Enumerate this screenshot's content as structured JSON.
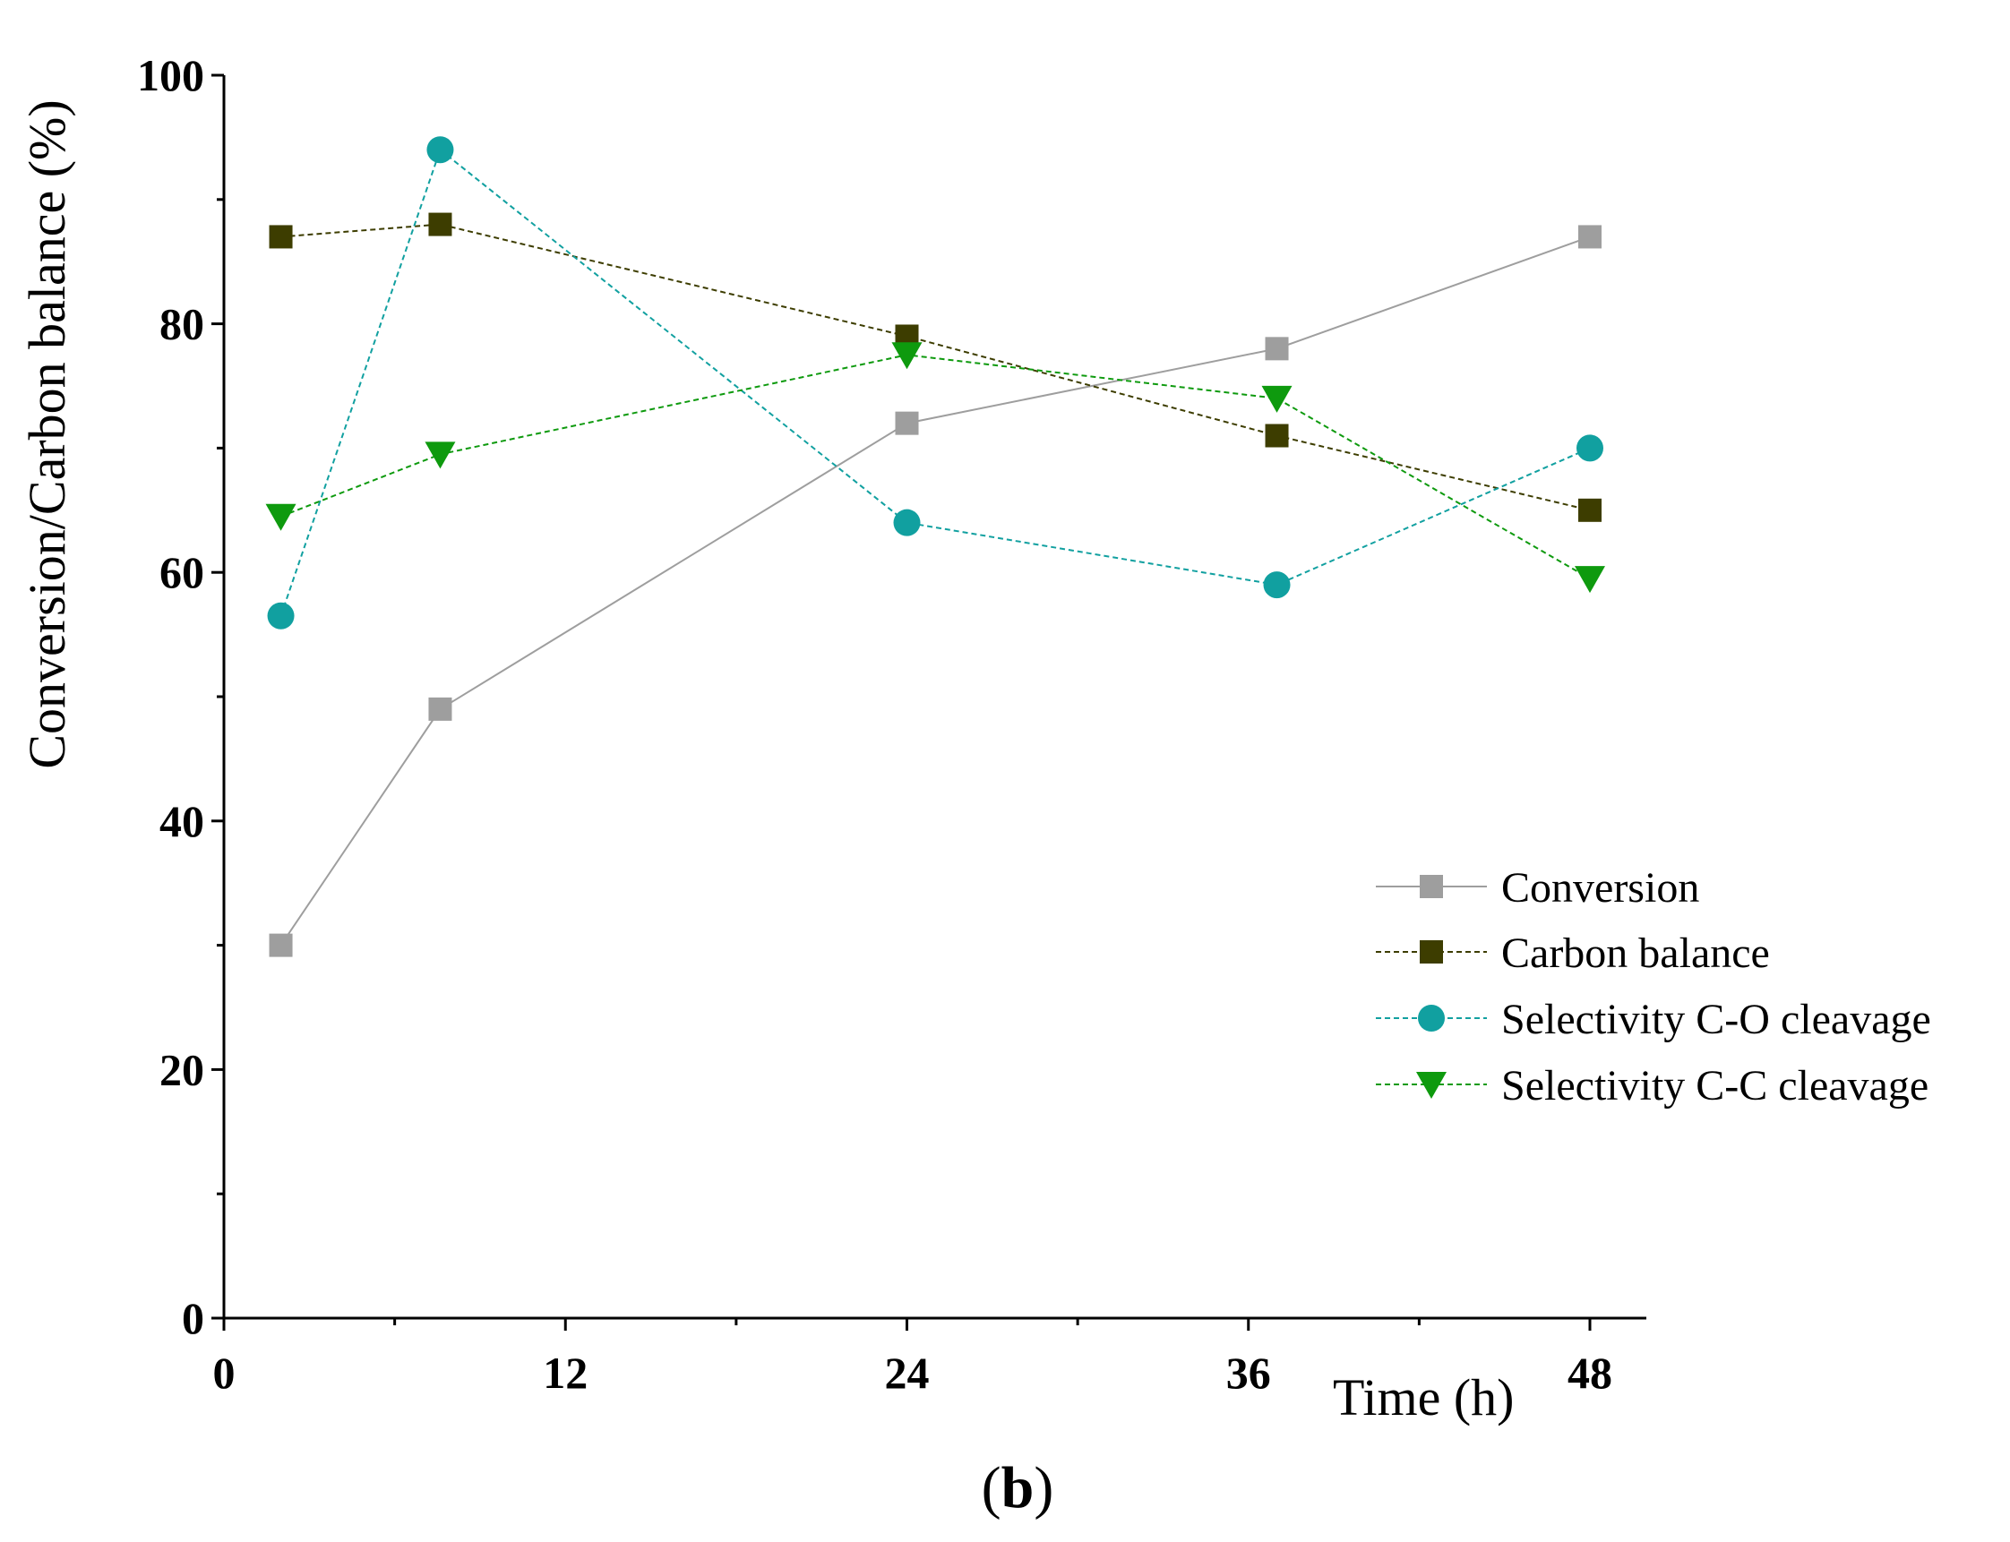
{
  "chart_data": {
    "type": "line",
    "title": "",
    "xlabel": "Time (h)",
    "ylabel": "Conversion/Carbon balance (%)",
    "xlim": [
      0,
      50
    ],
    "ylim": [
      0,
      100
    ],
    "x_ticks": [
      0,
      12,
      24,
      36,
      48
    ],
    "x_tick_labels": [
      "0",
      "12",
      "24",
      "36",
      "48"
    ],
    "x_minor_ticks": [
      6,
      18,
      30,
      42
    ],
    "y_ticks": [
      0,
      20,
      40,
      60,
      80,
      100
    ],
    "y_tick_labels": [
      "0",
      "20",
      "40",
      "60",
      "80",
      "100"
    ],
    "y_minor_ticks": [
      10,
      30,
      50,
      70,
      90
    ],
    "grid": false,
    "legend_position": "right-middle",
    "caption_open": "(",
    "caption_letter": "b",
    "caption_close": ")",
    "series": [
      {
        "name": "Conversion",
        "color": "#9e9e9e",
        "line_color": "#9e9e9e",
        "line_style": "solid",
        "marker": "square",
        "x": [
          2,
          7.6,
          24,
          37,
          48
        ],
        "values": [
          30,
          49,
          72,
          78,
          87
        ]
      },
      {
        "name": "Carbon balance",
        "color": "#3d3d00",
        "line_color": "#3d3d00",
        "line_style": "dashed",
        "marker": "square",
        "x": [
          2,
          7.6,
          24,
          37,
          48
        ],
        "values": [
          87,
          88,
          79,
          71,
          65
        ]
      },
      {
        "name": "Selectivity C-O cleavage",
        "color": "#11a0a0",
        "line_color": "#11a0a0",
        "line_style": "dashed",
        "marker": "circle",
        "x": [
          2,
          7.6,
          24,
          37,
          48
        ],
        "values": [
          56.5,
          94,
          64,
          59,
          70
        ]
      },
      {
        "name": "Selectivity C-C cleavage",
        "color": "#0e9a0e",
        "line_color": "#0e9a0e",
        "line_style": "dashed",
        "marker": "triangle-down",
        "x": [
          2,
          7.6,
          24,
          37,
          48
        ],
        "values": [
          64.5,
          69.5,
          77.5,
          74,
          59.5
        ]
      }
    ]
  }
}
